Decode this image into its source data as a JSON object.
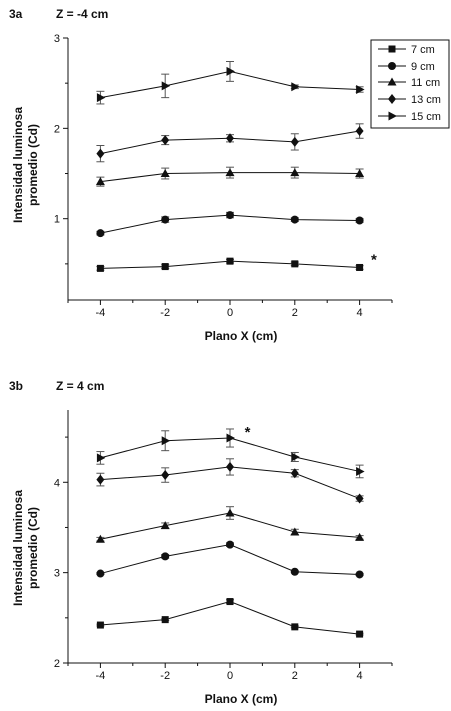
{
  "chart_data": [
    {
      "type": "line",
      "panel_label": "3a",
      "title": "Z = -4 cm",
      "xlabel": "Plano X (cm)",
      "ylabel_line1": "Intensidad luminosa",
      "ylabel_line2": "promedio (Cd)",
      "xlim": [
        -5,
        5
      ],
      "ylim": [
        0.1,
        3
      ],
      "xticks": [
        -4,
        -2,
        0,
        2,
        4
      ],
      "yticks": [
        1,
        2,
        3
      ],
      "x": [
        -4,
        -2,
        0,
        2,
        4
      ],
      "legend_position": "top-right",
      "series": [
        {
          "name": "7 cm",
          "marker": "square",
          "values": [
            0.45,
            0.47,
            0.53,
            0.5,
            0.46
          ],
          "errors": [
            0.02,
            0.02,
            0.02,
            0.02,
            0.02
          ]
        },
        {
          "name": "9 cm",
          "marker": "circle",
          "values": [
            0.84,
            0.99,
            1.04,
            0.99,
            0.98
          ],
          "errors": [
            0.02,
            0.03,
            0.03,
            0.02,
            0.02
          ]
        },
        {
          "name": "11 cm",
          "marker": "triangle-up",
          "values": [
            1.41,
            1.5,
            1.51,
            1.51,
            1.5
          ],
          "errors": [
            0.05,
            0.06,
            0.06,
            0.06,
            0.05
          ]
        },
        {
          "name": "13 cm",
          "marker": "diamond",
          "values": [
            1.72,
            1.87,
            1.89,
            1.85,
            1.97
          ],
          "errors": [
            0.09,
            0.05,
            0.04,
            0.09,
            0.08
          ]
        },
        {
          "name": "15 cm",
          "marker": "triangle-right",
          "values": [
            2.34,
            2.47,
            2.63,
            2.46,
            2.43
          ],
          "errors": [
            0.07,
            0.13,
            0.11,
            0.02,
            0.03
          ]
        }
      ],
      "annotation": {
        "text": "*",
        "x": 4.35,
        "y": 0.56
      }
    },
    {
      "type": "line",
      "panel_label": "3b",
      "title": "Z = 4 cm",
      "xlabel": "Plano X (cm)",
      "ylabel_line1": "Intensidad luminosa",
      "ylabel_line2": "promedio (Cd)",
      "xlim": [
        -5,
        5
      ],
      "ylim": [
        2,
        4.8
      ],
      "xticks": [
        -4,
        -2,
        0,
        2,
        4
      ],
      "yticks": [
        2,
        3,
        4
      ],
      "x": [
        -4,
        -2,
        0,
        2,
        4
      ],
      "series": [
        {
          "name": "7 cm",
          "marker": "square",
          "values": [
            2.42,
            2.48,
            2.68,
            2.4,
            2.32
          ],
          "errors": [
            0.01,
            0.01,
            0.02,
            0.01,
            0.01
          ]
        },
        {
          "name": "9 cm",
          "marker": "circle",
          "values": [
            2.99,
            3.18,
            3.31,
            3.01,
            2.98
          ],
          "errors": [
            0.01,
            0.02,
            0.02,
            0.01,
            0.01
          ]
        },
        {
          "name": "11 cm",
          "marker": "triangle-up",
          "values": [
            3.37,
            3.52,
            3.66,
            3.45,
            3.39
          ],
          "errors": [
            0.02,
            0.03,
            0.07,
            0.03,
            0.02
          ]
        },
        {
          "name": "13 cm",
          "marker": "diamond",
          "values": [
            4.03,
            4.08,
            4.17,
            4.1,
            3.82
          ],
          "errors": [
            0.07,
            0.08,
            0.09,
            0.04,
            0.03
          ]
        },
        {
          "name": "15 cm",
          "marker": "triangle-right",
          "values": [
            4.27,
            4.46,
            4.49,
            4.28,
            4.12
          ],
          "errors": [
            0.07,
            0.11,
            0.1,
            0.05,
            0.07
          ]
        }
      ],
      "annotation": {
        "text": "*",
        "x": 0.45,
        "y": 4.57
      }
    }
  ]
}
